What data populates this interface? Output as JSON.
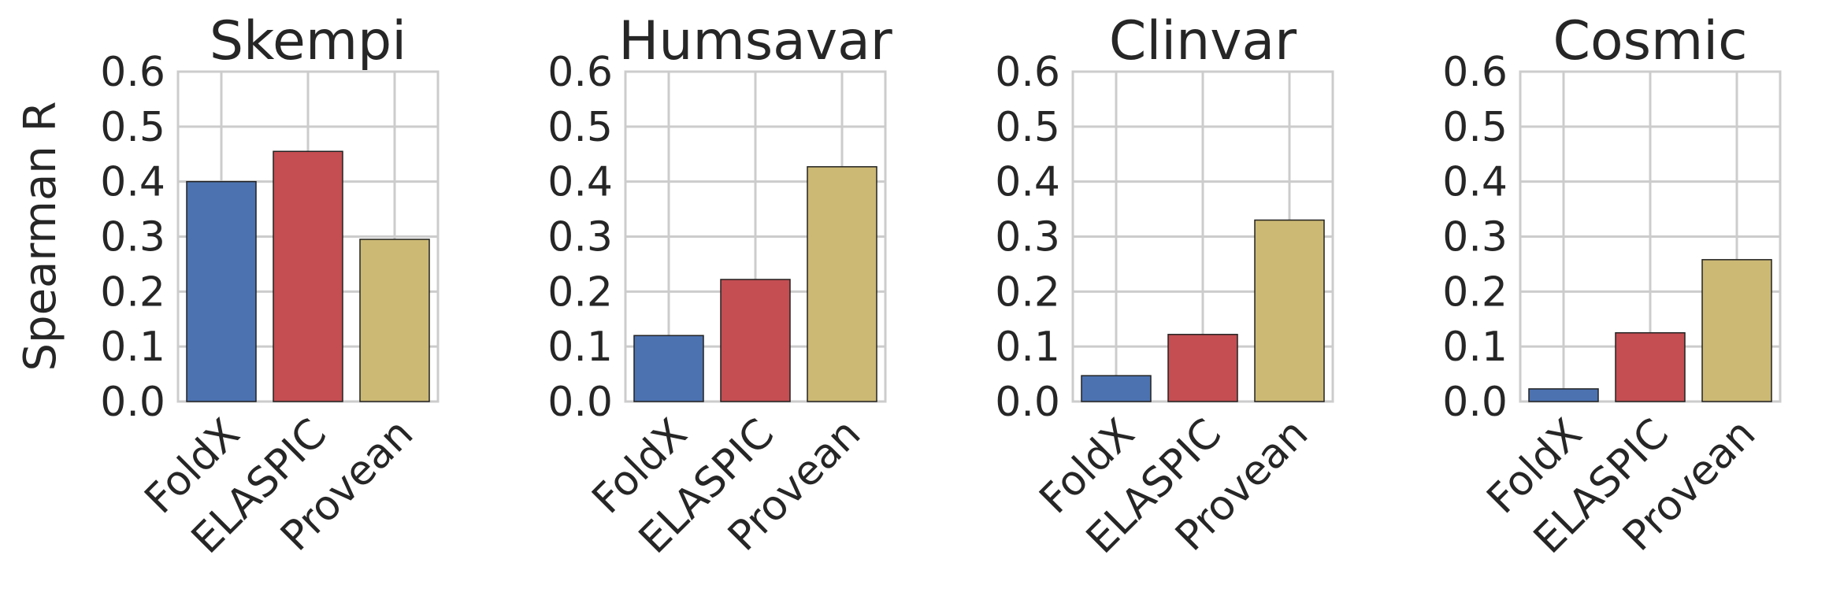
{
  "chart_data": {
    "type": "bar",
    "ylabel": "Spearman R",
    "ylim": [
      0,
      0.6
    ],
    "yticks": [
      "0.0",
      "0.1",
      "0.2",
      "0.3",
      "0.4",
      "0.5",
      "0.6"
    ],
    "grid": true,
    "categories": [
      "FoldX",
      "ELASPIC",
      "Provean"
    ],
    "colors": [
      "#4c72b0",
      "#c44e52",
      "#ccb974"
    ],
    "panels": [
      {
        "title": "Skempi",
        "values": [
          0.4,
          0.455,
          0.295
        ]
      },
      {
        "title": "Humsavar",
        "values": [
          0.12,
          0.222,
          0.427
        ]
      },
      {
        "title": "Clinvar",
        "values": [
          0.047,
          0.122,
          0.33
        ]
      },
      {
        "title": "Cosmic",
        "values": [
          0.023,
          0.125,
          0.258
        ]
      }
    ]
  }
}
